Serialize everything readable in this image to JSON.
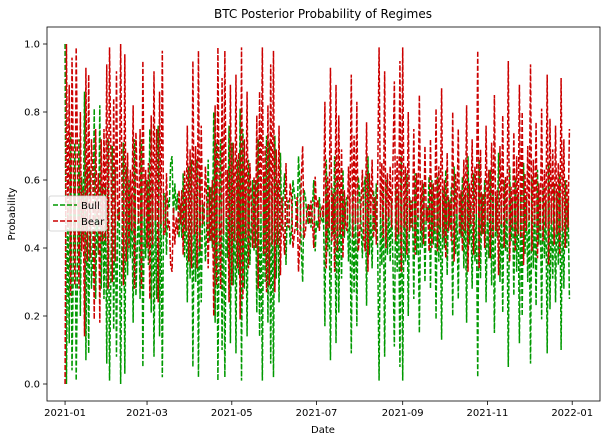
{
  "chart_data": {
    "type": "line",
    "title": "BTC Posterior Probability of Regimes",
    "xlabel": "Date",
    "ylabel": "Probability",
    "xlim": [
      "2020-12-19",
      "2022-01-21"
    ],
    "ylim": [
      -0.05,
      1.05
    ],
    "x_ticks": [
      "2021-01",
      "2021-03",
      "2021-05",
      "2021-07",
      "2021-09",
      "2021-11",
      "2022-01"
    ],
    "y_ticks": [
      0.0,
      0.2,
      0.4,
      0.6,
      0.8,
      1.0
    ],
    "grid": false,
    "legend_position": "center-left",
    "x_start": "2021-01-01",
    "x_end": "2022-01-05",
    "x_step": "1 day",
    "series": [
      {
        "name": "Bull",
        "color": "#009900",
        "linestyle": "dashed",
        "values": [
          1.0,
          0.0,
          0.54,
          0.12,
          0.74,
          0.04,
          0.37,
          0.71,
          0.01,
          0.35,
          0.72,
          0.2,
          0.61,
          0.43,
          0.86,
          0.07,
          0.64,
          0.09,
          0.63,
          0.28,
          0.39,
          0.81,
          0.25,
          0.51,
          0.38,
          0.82,
          0.28,
          0.58,
          0.25,
          0.58,
          0.06,
          0.72,
          0.01,
          0.33,
          0.7,
          0.16,
          0.64,
          0.08,
          0.51,
          0.52,
          0.0,
          0.44,
          0.71,
          0.03,
          0.64,
          0.32,
          0.6,
          0.37,
          0.55,
          0.18,
          0.72,
          0.26,
          0.41,
          0.53,
          0.25,
          0.72,
          0.05,
          0.51,
          0.37,
          0.6,
          0.35,
          0.75,
          0.21,
          0.59,
          0.08,
          0.52,
          0.25,
          0.76,
          0.14,
          0.53,
          0.02,
          0.56,
          0.56,
          0.38,
          0.54,
          0.52,
          0.65,
          0.67,
          0.48,
          0.59,
          0.51,
          0.56,
          0.43,
          0.53,
          0.43,
          0.62,
          0.37,
          0.55,
          0.24,
          0.64,
          0.31,
          0.66,
          0.05,
          0.56,
          0.3,
          0.66,
          0.02,
          0.61,
          0.24,
          0.53,
          0.51,
          0.36,
          0.46,
          0.66,
          0.42,
          0.58,
          0.4,
          0.8,
          0.18,
          0.71,
          0.01,
          0.49,
          0.72,
          0.1,
          0.56,
          0.02,
          0.51,
          0.37,
          0.76,
          0.12,
          0.71,
          0.29,
          0.58,
          0.09,
          0.66,
          0.32,
          0.81,
          0.01,
          0.75,
          0.28,
          0.57,
          0.14,
          0.66,
          0.35,
          0.47,
          0.6,
          0.39,
          0.6,
          0.21,
          0.72,
          0.14,
          0.5,
          0.01,
          0.62,
          0.3,
          0.73,
          0.18,
          0.71,
          0.06,
          0.59,
          0.02,
          0.73,
          0.31,
          0.59,
          0.24,
          0.68,
          0.45,
          0.55,
          0.62,
          0.35,
          0.53,
          0.54,
          0.41,
          0.45,
          0.6,
          0.56,
          0.53,
          0.45,
          0.67,
          0.58,
          0.4,
          0.3,
          0.57,
          0.55,
          0.5,
          0.47,
          0.53,
          0.46,
          0.52,
          0.6,
          0.39,
          0.48,
          0.46,
          0.55,
          0.49,
          0.48,
          0.51,
          0.17,
          0.66,
          0.39,
          0.54,
          0.07,
          0.58,
          0.44,
          0.67,
          0.12,
          0.61,
          0.21,
          0.56,
          0.31,
          0.63,
          0.43,
          0.54,
          0.55,
          0.36,
          0.5,
          0.09,
          0.57,
          0.27,
          0.53,
          0.17,
          0.61,
          0.56,
          0.47,
          0.37,
          0.57,
          0.61,
          0.23,
          0.67,
          0.38,
          0.5,
          0.34,
          0.57,
          0.45,
          0.59,
          0.39,
          0.01,
          0.51,
          0.35,
          0.57,
          0.08,
          0.6,
          0.38,
          0.51,
          0.36,
          0.54,
          0.35,
          0.11,
          0.58,
          0.33,
          0.56,
          0.05,
          0.67,
          0.01,
          0.54,
          0.36,
          0.62,
          0.2,
          0.55,
          0.46,
          0.54,
          0.25,
          0.62,
          0.38,
          0.51,
          0.15,
          0.55,
          0.4,
          0.59,
          0.3,
          0.52,
          0.48,
          0.61,
          0.28,
          0.6,
          0.41,
          0.55,
          0.19,
          0.61,
          0.36,
          0.54,
          0.13,
          0.57,
          0.4,
          0.63,
          0.32,
          0.55,
          0.46,
          0.58,
          0.2,
          0.64,
          0.38,
          0.5,
          0.25,
          0.56,
          0.43,
          0.61,
          0.34,
          0.55,
          0.18,
          0.67,
          0.41,
          0.53,
          0.28,
          0.62,
          0.36,
          0.5,
          0.02,
          0.66,
          0.31,
          0.56,
          0.44,
          0.6,
          0.24,
          0.52,
          0.37,
          0.63,
          0.29,
          0.57,
          0.15,
          0.55,
          0.43,
          0.68,
          0.3,
          0.53,
          0.21,
          0.6,
          0.39,
          0.52,
          0.05,
          0.64,
          0.42,
          0.54,
          0.26,
          0.61,
          0.33,
          0.56,
          0.12,
          0.57,
          0.2,
          0.65,
          0.38,
          0.55,
          0.3,
          0.52,
          0.06,
          0.61,
          0.34,
          0.53,
          0.23,
          0.63,
          0.41,
          0.55,
          0.19,
          0.58,
          0.37,
          0.54,
          0.09,
          0.65,
          0.22,
          0.53,
          0.31,
          0.59,
          0.24,
          0.56,
          0.35,
          0.62,
          0.1,
          0.55,
          0.28,
          0.6,
          0.4,
          0.54,
          0.25
        ]
      },
      {
        "name": "Bear",
        "color": "#cc0000",
        "linestyle": "dashed",
        "values": [
          0.0,
          1.0,
          0.46,
          0.88,
          0.26,
          0.96,
          0.63,
          0.29,
          0.99,
          0.65,
          0.28,
          0.8,
          0.39,
          0.57,
          0.14,
          0.93,
          0.36,
          0.91,
          0.37,
          0.72,
          0.61,
          0.19,
          0.75,
          0.49,
          0.62,
          0.18,
          0.72,
          0.42,
          0.75,
          0.42,
          0.94,
          0.28,
          0.99,
          0.67,
          0.3,
          0.84,
          0.36,
          0.92,
          0.49,
          0.48,
          1.0,
          0.56,
          0.29,
          0.97,
          0.36,
          0.68,
          0.4,
          0.63,
          0.45,
          0.82,
          0.28,
          0.74,
          0.59,
          0.47,
          0.75,
          0.28,
          0.95,
          0.49,
          0.63,
          0.4,
          0.65,
          0.25,
          0.79,
          0.41,
          0.92,
          0.48,
          0.75,
          0.24,
          0.86,
          0.47,
          0.98,
          0.44,
          0.44,
          0.62,
          0.46,
          0.48,
          0.35,
          0.33,
          0.52,
          0.41,
          0.49,
          0.44,
          0.57,
          0.47,
          0.57,
          0.38,
          0.63,
          0.45,
          0.76,
          0.36,
          0.69,
          0.34,
          0.95,
          0.44,
          0.7,
          0.34,
          0.98,
          0.39,
          0.76,
          0.47,
          0.49,
          0.64,
          0.54,
          0.34,
          0.58,
          0.42,
          0.6,
          0.2,
          0.82,
          0.29,
          0.99,
          0.51,
          0.28,
          0.9,
          0.44,
          0.98,
          0.49,
          0.63,
          0.24,
          0.88,
          0.29,
          0.71,
          0.42,
          0.91,
          0.34,
          0.68,
          0.19,
          0.99,
          0.25,
          0.72,
          0.43,
          0.86,
          0.34,
          0.65,
          0.53,
          0.4,
          0.61,
          0.4,
          0.79,
          0.28,
          0.86,
          0.5,
          0.99,
          0.38,
          0.7,
          0.27,
          0.82,
          0.29,
          0.94,
          0.41,
          0.98,
          0.27,
          0.69,
          0.41,
          0.76,
          0.32,
          0.55,
          0.45,
          0.38,
          0.65,
          0.47,
          0.46,
          0.59,
          0.55,
          0.4,
          0.44,
          0.47,
          0.55,
          0.33,
          0.42,
          0.6,
          0.7,
          0.43,
          0.45,
          0.5,
          0.53,
          0.47,
          0.54,
          0.48,
          0.4,
          0.61,
          0.52,
          0.54,
          0.45,
          0.51,
          0.52,
          0.49,
          0.83,
          0.34,
          0.61,
          0.46,
          0.93,
          0.42,
          0.56,
          0.33,
          0.88,
          0.39,
          0.79,
          0.44,
          0.69,
          0.37,
          0.57,
          0.46,
          0.45,
          0.64,
          0.5,
          0.91,
          0.43,
          0.73,
          0.47,
          0.83,
          0.39,
          0.44,
          0.53,
          0.63,
          0.43,
          0.39,
          0.77,
          0.33,
          0.62,
          0.5,
          0.66,
          0.43,
          0.55,
          0.41,
          0.61,
          0.99,
          0.49,
          0.65,
          0.43,
          0.92,
          0.4,
          0.62,
          0.49,
          0.64,
          0.46,
          0.65,
          0.89,
          0.42,
          0.67,
          0.44,
          0.95,
          0.33,
          0.99,
          0.46,
          0.64,
          0.38,
          0.8,
          0.45,
          0.54,
          0.46,
          0.75,
          0.38,
          0.62,
          0.49,
          0.85,
          0.45,
          0.6,
          0.41,
          0.7,
          0.48,
          0.52,
          0.39,
          0.72,
          0.4,
          0.59,
          0.45,
          0.81,
          0.39,
          0.64,
          0.46,
          0.87,
          0.43,
          0.6,
          0.37,
          0.68,
          0.45,
          0.54,
          0.42,
          0.8,
          0.36,
          0.62,
          0.5,
          0.75,
          0.44,
          0.57,
          0.39,
          0.66,
          0.45,
          0.82,
          0.33,
          0.59,
          0.47,
          0.72,
          0.38,
          0.64,
          0.5,
          0.98,
          0.34,
          0.69,
          0.44,
          0.56,
          0.4,
          0.76,
          0.48,
          0.63,
          0.37,
          0.71,
          0.43,
          0.85,
          0.45,
          0.57,
          0.32,
          0.7,
          0.47,
          0.79,
          0.4,
          0.61,
          0.48,
          0.95,
          0.36,
          0.58,
          0.46,
          0.74,
          0.39,
          0.67,
          0.44,
          0.88,
          0.43,
          0.8,
          0.35,
          0.62,
          0.45,
          0.7,
          0.48,
          0.94,
          0.39,
          0.66,
          0.47,
          0.77,
          0.37,
          0.59,
          0.45,
          0.81,
          0.42,
          0.63,
          0.46,
          0.91,
          0.35,
          0.78,
          0.47,
          0.69,
          0.41,
          0.76,
          0.44,
          0.65,
          0.38,
          0.9,
          0.45,
          0.72,
          0.4,
          0.6,
          0.46,
          0.75
        ]
      }
    ]
  }
}
